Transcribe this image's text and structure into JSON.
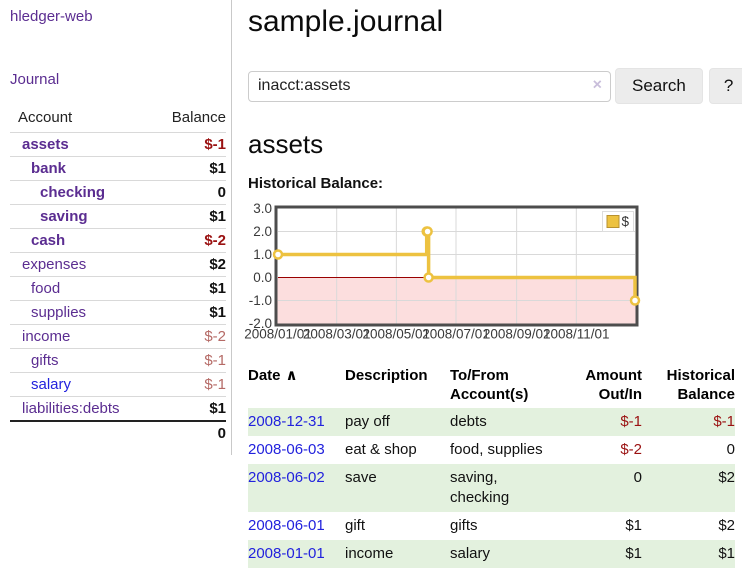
{
  "app": {
    "brand": "hledger-web",
    "nav_journal": "Journal"
  },
  "colors": {
    "link_purple": "#5b2d91",
    "link_blue": "#2222dd",
    "negative_strong": "#9a1111",
    "negative_muted": "#b56a66",
    "row_stripe_green": "#e3f1de",
    "chart_line_gold": "#edc240",
    "chart_negative_fill": "#fcdede",
    "chart_zero_line": "#990000",
    "button_bg": "#ececec",
    "border_gray": "#cccccc"
  },
  "sidebar": {
    "accounts_header": {
      "account": "Account",
      "balance": "Balance"
    },
    "accounts": [
      {
        "name": "assets",
        "balance": "$-1",
        "level": 0,
        "bold": true,
        "neg": "strong"
      },
      {
        "name": "bank",
        "balance": "$1",
        "level": 1,
        "bold": true
      },
      {
        "name": "checking",
        "balance": "0",
        "level": 2,
        "bold": true
      },
      {
        "name": "saving",
        "balance": "$1",
        "level": 2,
        "bold": true
      },
      {
        "name": "cash",
        "balance": "$-2",
        "level": 1,
        "bold": true,
        "neg": "strong"
      },
      {
        "name": "expenses",
        "balance": "$2",
        "level": 0
      },
      {
        "name": "food",
        "balance": "$1",
        "level": 1
      },
      {
        "name": "supplies",
        "balance": "$1",
        "level": 1
      },
      {
        "name": "income",
        "balance": "$-2",
        "level": 0,
        "neg": "muted"
      },
      {
        "name": "gifts",
        "balance": "$-1",
        "level": 1,
        "neg": "muted"
      },
      {
        "name": "salary",
        "balance": "$-1",
        "level": 1,
        "neg": "muted",
        "unvisited": true
      },
      {
        "name": "liabilities:debts",
        "balance": "$1",
        "level": 0
      }
    ],
    "total": "0"
  },
  "header": {
    "title": "sample.journal"
  },
  "search": {
    "value": "inacct:assets",
    "clear_label": "×",
    "button": "Search",
    "help": "?"
  },
  "account_page": {
    "title": "assets",
    "chart_label": "Historical Balance:"
  },
  "chart_data": {
    "type": "line",
    "title": "Historical Balance",
    "step": true,
    "grid": true,
    "legend_label": "$",
    "legend_position": "top-right",
    "xlim": [
      "2008-01-01",
      "2008-12-31"
    ],
    "ylim": [
      -2,
      3
    ],
    "x_ticks": [
      "2008/01/01",
      "2008/03/01",
      "2008/05/01",
      "2008/07/01",
      "2008/09/01",
      "2008/11/01"
    ],
    "y_ticks": [
      3.0,
      2.0,
      1.0,
      0.0,
      -1.0,
      -2.0
    ],
    "series": [
      {
        "name": "$",
        "points": [
          [
            "2008-01-01",
            1
          ],
          [
            "2008-06-01",
            2
          ],
          [
            "2008-06-02",
            2
          ],
          [
            "2008-06-03",
            0
          ],
          [
            "2008-12-31",
            -1
          ]
        ]
      }
    ]
  },
  "register": {
    "sort_icon": "∧",
    "columns": [
      {
        "label": "Date",
        "sort_caret": true
      },
      {
        "label": "Description"
      },
      {
        "label": "To/From",
        "label_line2": "Account(s)"
      },
      {
        "label": "Amount",
        "label_line2": "Out/In",
        "align": "right"
      },
      {
        "label": "Historical",
        "label_line2": "Balance",
        "align": "right"
      }
    ],
    "rows": [
      {
        "date": "2008-12-31",
        "description": "pay off",
        "accounts": "debts",
        "amount": "$-1",
        "balance": "$-1",
        "amount_neg": true,
        "balance_neg": true
      },
      {
        "date": "2008-06-03",
        "description": "eat & shop",
        "accounts": "food, supplies",
        "amount": "$-2",
        "balance": "0",
        "amount_neg": true
      },
      {
        "date": "2008-06-02",
        "description": "save",
        "accounts": "saving, checking",
        "amount": "0",
        "balance": "$2",
        "accounts_wrap": true
      },
      {
        "date": "2008-06-01",
        "description": "gift",
        "accounts": "gifts",
        "amount": "$1",
        "balance": "$2"
      },
      {
        "date": "2008-01-01",
        "description": "income",
        "accounts": "salary",
        "amount": "$1",
        "balance": "$1"
      }
    ]
  }
}
